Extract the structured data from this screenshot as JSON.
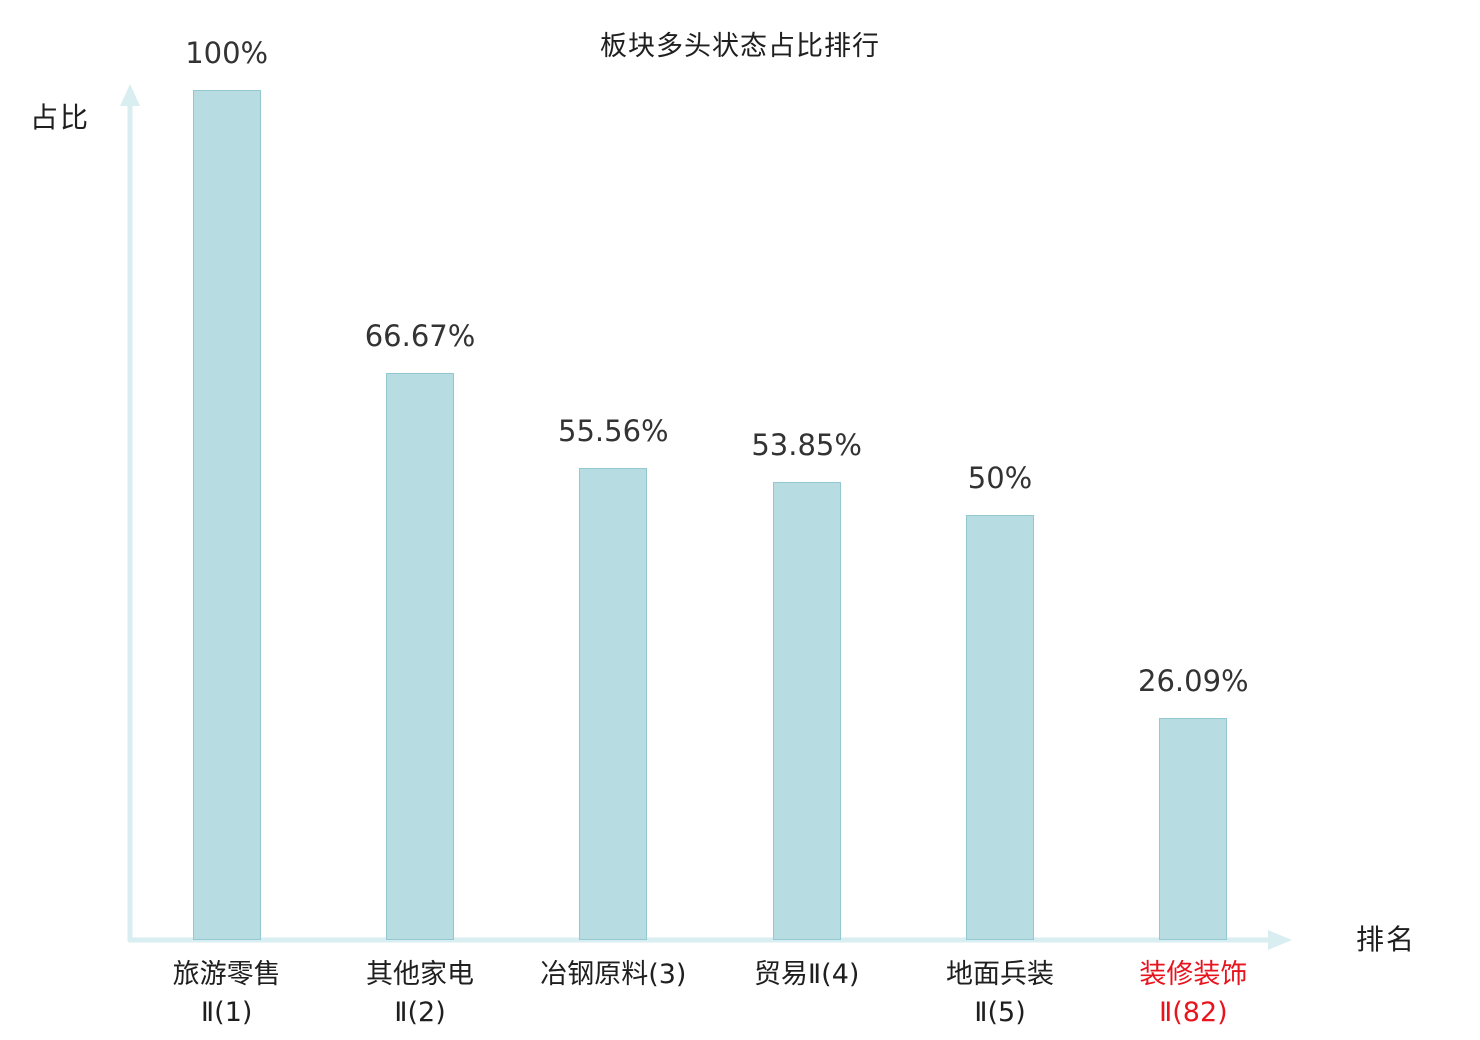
{
  "chart": {
    "title": "板块多头状态占比排行",
    "y_axis_label": "占比",
    "x_axis_label": "排名"
  },
  "chart_data": {
    "type": "bar",
    "categories": [
      "旅游零售Ⅱ(1)",
      "其他家电Ⅱ(2)",
      "冶钢原料(3)",
      "贸易Ⅱ(4)",
      "地面兵装Ⅱ(5)",
      "装修装饰Ⅱ(82)"
    ],
    "category_lines": [
      [
        "旅游零售",
        "Ⅱ(1)"
      ],
      [
        "其他家电",
        "Ⅱ(2)"
      ],
      [
        "冶钢原料(3)"
      ],
      [
        "贸易Ⅱ(4)"
      ],
      [
        "地面兵装",
        "Ⅱ(5)"
      ],
      [
        "装修装饰",
        "Ⅱ(82)"
      ]
    ],
    "values": [
      100,
      66.67,
      55.56,
      53.85,
      50,
      26.09
    ],
    "value_labels": [
      "100%",
      "66.67%",
      "55.56%",
      "53.85%",
      "50%",
      "26.09%"
    ],
    "highlight_index": 5,
    "ylim": [
      0,
      100
    ],
    "grid": false,
    "legend": false,
    "colors": {
      "bar_fill": "#b7dde2",
      "bar_border": "#93c8d0",
      "axis": "#d9eef0",
      "value_label": "#333333",
      "category_label": "#1f1f1f",
      "highlight_label": "#e8131d",
      "background": "#ffffff"
    }
  }
}
